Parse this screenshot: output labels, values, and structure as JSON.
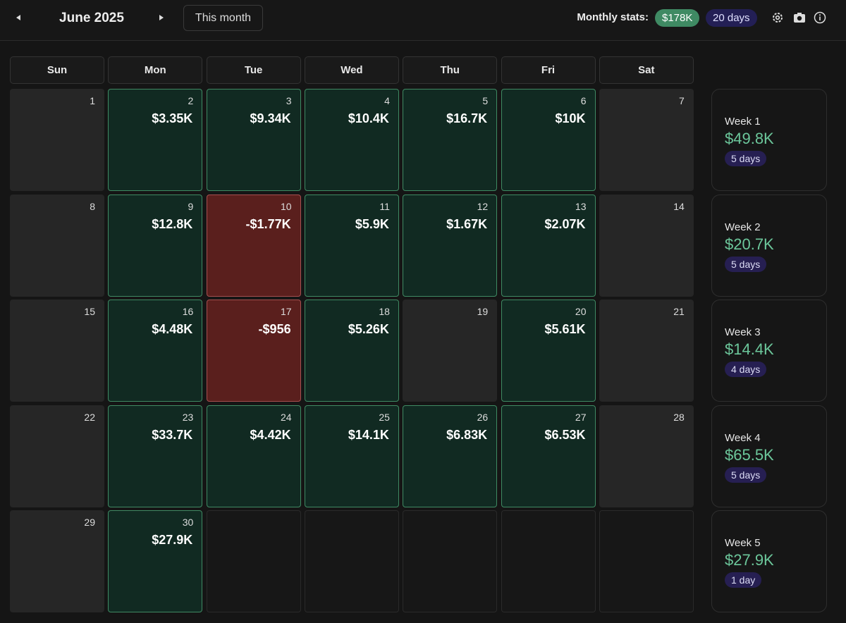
{
  "header": {
    "month": "June 2025",
    "this_month_button": "This month",
    "stats_label": "Monthly stats:",
    "stats_total": "$178K",
    "stats_days": "20 days"
  },
  "weekdays": [
    "Sun",
    "Mon",
    "Tue",
    "Wed",
    "Thu",
    "Fri",
    "Sat"
  ],
  "weeks": [
    {
      "label": "Week 1",
      "total": "$49.8K",
      "days_count": "5 days",
      "days": [
        {
          "day": 1,
          "pnl": null
        },
        {
          "day": 2,
          "pnl": "$3.35K"
        },
        {
          "day": 3,
          "pnl": "$9.34K"
        },
        {
          "day": 4,
          "pnl": "$10.4K"
        },
        {
          "day": 5,
          "pnl": "$16.7K"
        },
        {
          "day": 6,
          "pnl": "$10K"
        },
        {
          "day": 7,
          "pnl": null
        }
      ]
    },
    {
      "label": "Week 2",
      "total": "$20.7K",
      "days_count": "5 days",
      "days": [
        {
          "day": 8,
          "pnl": null
        },
        {
          "day": 9,
          "pnl": "$12.8K"
        },
        {
          "day": 10,
          "pnl": "-$1.77K"
        },
        {
          "day": 11,
          "pnl": "$5.9K"
        },
        {
          "day": 12,
          "pnl": "$1.67K"
        },
        {
          "day": 13,
          "pnl": "$2.07K"
        },
        {
          "day": 14,
          "pnl": null
        }
      ]
    },
    {
      "label": "Week 3",
      "total": "$14.4K",
      "days_count": "4 days",
      "days": [
        {
          "day": 15,
          "pnl": null
        },
        {
          "day": 16,
          "pnl": "$4.48K"
        },
        {
          "day": 17,
          "pnl": "-$956"
        },
        {
          "day": 18,
          "pnl": "$5.26K"
        },
        {
          "day": 19,
          "pnl": null
        },
        {
          "day": 20,
          "pnl": "$5.61K"
        },
        {
          "day": 21,
          "pnl": null
        }
      ]
    },
    {
      "label": "Week 4",
      "total": "$65.5K",
      "days_count": "5 days",
      "days": [
        {
          "day": 22,
          "pnl": null
        },
        {
          "day": 23,
          "pnl": "$33.7K"
        },
        {
          "day": 24,
          "pnl": "$4.42K"
        },
        {
          "day": 25,
          "pnl": "$14.1K"
        },
        {
          "day": 26,
          "pnl": "$6.83K"
        },
        {
          "day": 27,
          "pnl": "$6.53K"
        },
        {
          "day": 28,
          "pnl": null
        }
      ]
    },
    {
      "label": "Week 5",
      "total": "$27.9K",
      "days_count": "1 day",
      "days": [
        {
          "day": 29,
          "pnl": null
        },
        {
          "day": 30,
          "pnl": "$27.9K"
        },
        null,
        null,
        null,
        null,
        null
      ]
    }
  ]
}
